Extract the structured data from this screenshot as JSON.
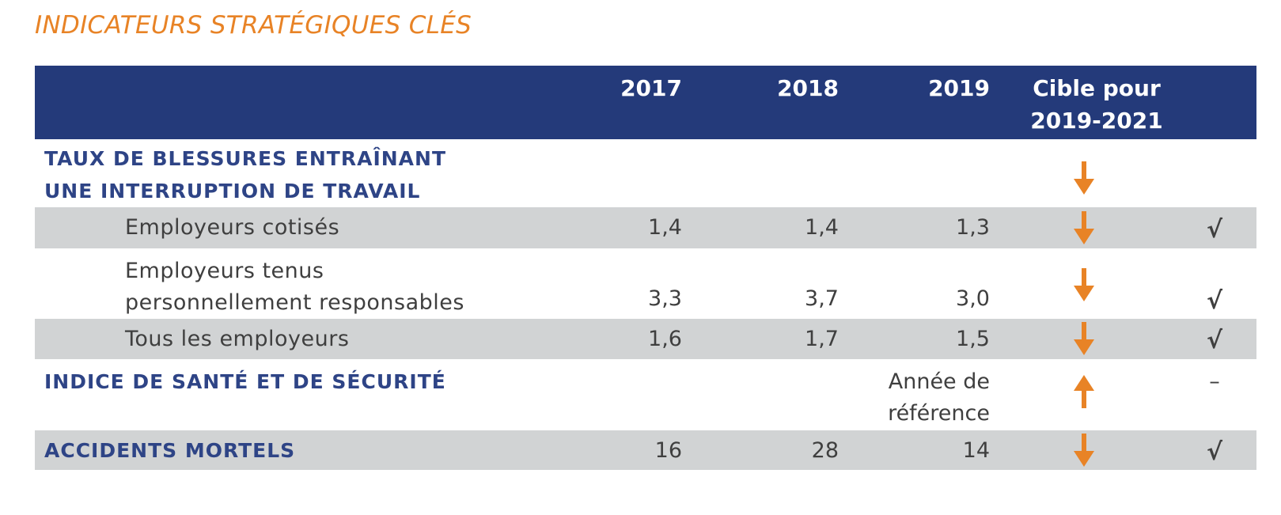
{
  "title": "INDICATEURS STRATÉGIQUES CLÉS",
  "colors": {
    "header_bg": "#243a7a",
    "accent_orange": "#e88326",
    "row_grey": "#d1d3d4",
    "section_blue": "#2e4486"
  },
  "header": {
    "col_2017": "2017",
    "col_2018": "2018",
    "col_2019": "2019",
    "target_line1": "Cible pour",
    "target_line2": "2019-2021"
  },
  "rows": {
    "lost_time": {
      "label_line1": "TAUX DE BLESSURES ENTRAÎNANT",
      "label_line2": "UNE INTERRUPTION DE TRAVAIL",
      "target_icon": "arrow-down-icon"
    },
    "assessed": {
      "label": "Employeurs cotisés",
      "v2017": "1,4",
      "v2018": "1,4",
      "v2019": "1,3",
      "target_icon": "arrow-down-icon",
      "status": "√"
    },
    "self_insured": {
      "label_line1": "Employeurs tenus",
      "label_line2": "personnellement responsables",
      "v2017": "3,3",
      "v2018": "3,7",
      "v2019": "3,0",
      "target_icon": "arrow-down-icon",
      "status": "√"
    },
    "all_employers": {
      "label": "Tous les employeurs",
      "v2017": "1,6",
      "v2018": "1,7",
      "v2019": "1,5",
      "target_icon": "arrow-down-icon",
      "status": "√"
    },
    "hs_index": {
      "label": "INDICE DE SANTÉ ET DE SÉCURITÉ",
      "v2019_line1": "Année de",
      "v2019_line2": "référence",
      "target_icon": "arrow-up-icon",
      "status": "–"
    },
    "fatalities": {
      "label": "ACCIDENTS MORTELS",
      "v2017": "16",
      "v2018": "28",
      "v2019": "14",
      "target_icon": "arrow-down-icon",
      "status": "√"
    }
  }
}
